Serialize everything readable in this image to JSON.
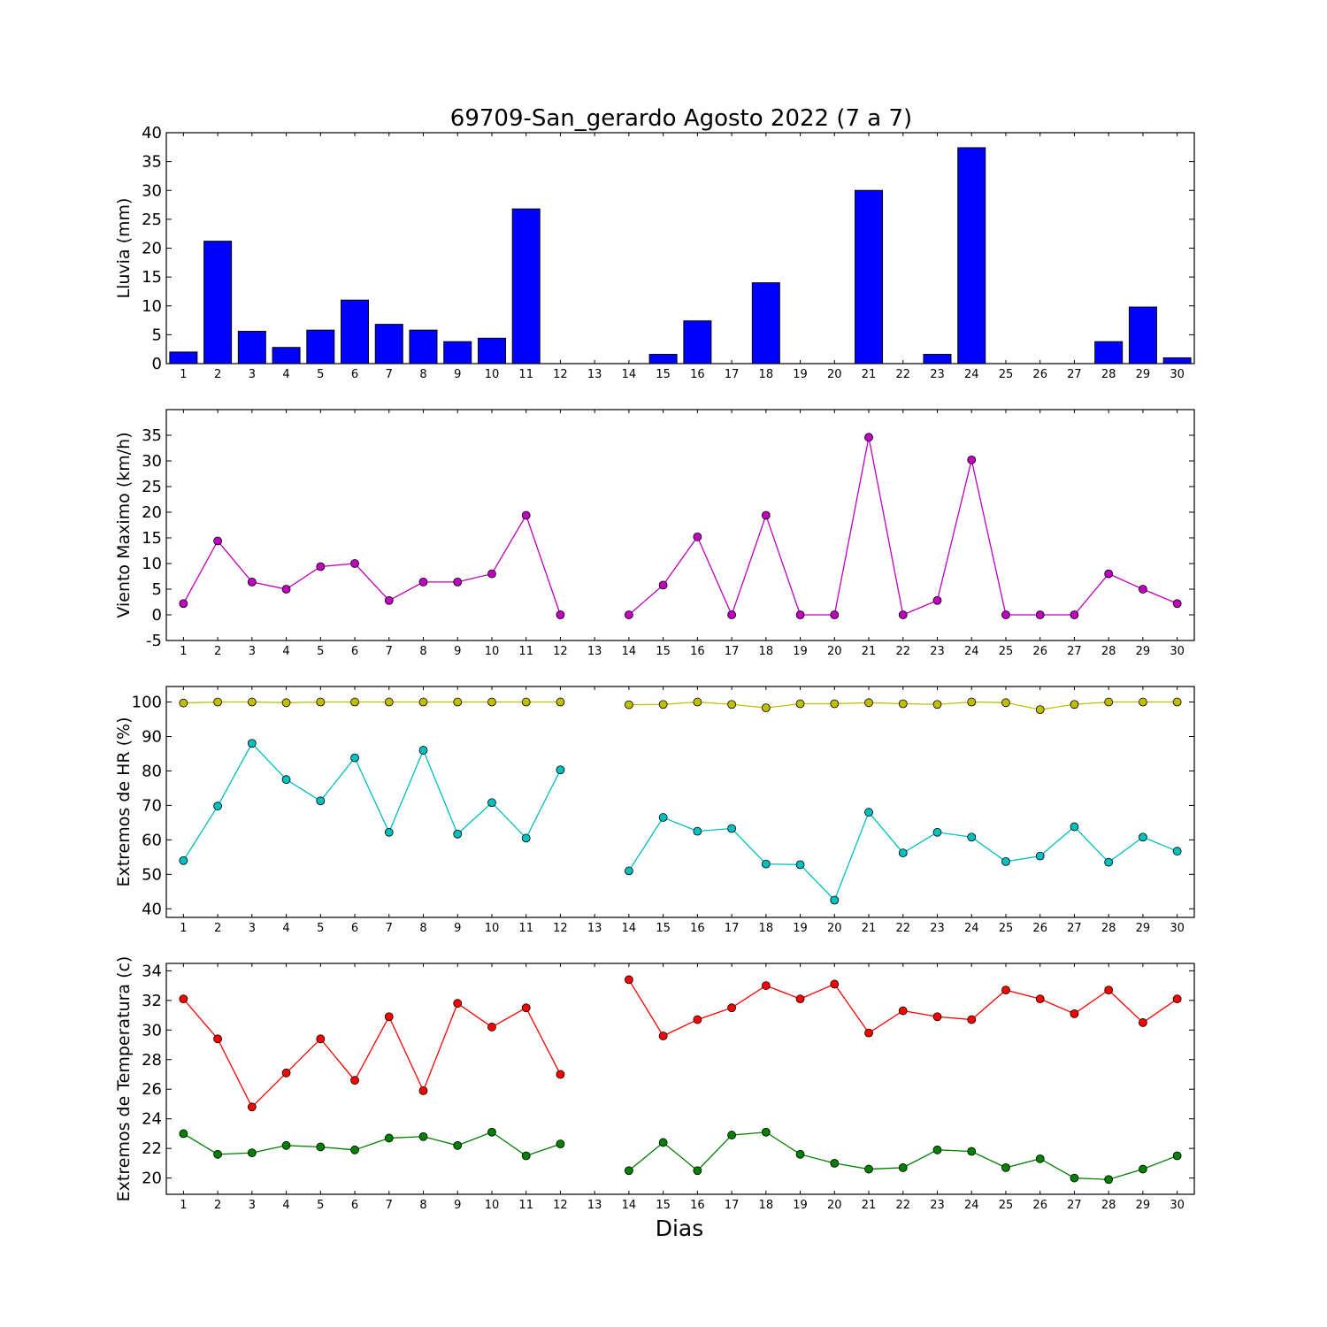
{
  "figure": {
    "title": "69709-San_gerardo Agosto 2022  (7 a 7)",
    "xlabel": "Dias"
  },
  "chart_data": [
    {
      "type": "bar",
      "ylabel": "Lluvia (mm)",
      "ylim": [
        0,
        40
      ],
      "yticks": [
        0,
        5,
        10,
        15,
        20,
        25,
        30,
        35,
        40
      ],
      "categories": [
        "1",
        "2",
        "3",
        "4",
        "5",
        "6",
        "7",
        "8",
        "9",
        "10",
        "11",
        "12",
        "13",
        "14",
        "15",
        "16",
        "17",
        "18",
        "19",
        "20",
        "21",
        "22",
        "23",
        "24",
        "25",
        "26",
        "27",
        "28",
        "29",
        "30"
      ],
      "series": [
        {
          "values": [
            2.0,
            21.2,
            5.6,
            2.8,
            5.8,
            11.0,
            6.8,
            5.8,
            3.8,
            4.4,
            26.8,
            0,
            0,
            0,
            1.6,
            7.4,
            0,
            14.0,
            0,
            0,
            30.0,
            0,
            1.6,
            37.4,
            0,
            0,
            0,
            3.8,
            9.8,
            1.0
          ],
          "color": "#0000ff"
        }
      ]
    },
    {
      "type": "line",
      "ylabel": "Viento Maximo (km/h)",
      "ylim": [
        -5,
        40
      ],
      "yticks": [
        -5,
        0,
        5,
        10,
        15,
        20,
        25,
        30,
        35
      ],
      "categories": [
        "1",
        "2",
        "3",
        "4",
        "5",
        "6",
        "7",
        "8",
        "9",
        "10",
        "11",
        "12",
        "13",
        "14",
        "15",
        "16",
        "17",
        "18",
        "19",
        "20",
        "21",
        "22",
        "23",
        "24",
        "25",
        "26",
        "27",
        "28",
        "29",
        "30"
      ],
      "series": [
        {
          "values": [
            2.2,
            14.4,
            6.4,
            5.0,
            9.4,
            10.0,
            2.8,
            6.4,
            6.4,
            8.0,
            19.4,
            0.0,
            null,
            0.0,
            5.8,
            15.2,
            0.0,
            19.4,
            0.0,
            0.0,
            34.6,
            0.0,
            2.8,
            30.2,
            0.0,
            0.0,
            0.0,
            8.0,
            5.0,
            2.2
          ],
          "color": "#bf00bf"
        }
      ]
    },
    {
      "type": "line",
      "ylabel": "Extremos de HR (%)",
      "ylim": [
        37.5,
        104.5
      ],
      "yticks": [
        40,
        50,
        60,
        70,
        80,
        90,
        100
      ],
      "categories": [
        "1",
        "2",
        "3",
        "4",
        "5",
        "6",
        "7",
        "8",
        "9",
        "10",
        "11",
        "12",
        "13",
        "14",
        "15",
        "16",
        "17",
        "18",
        "19",
        "20",
        "21",
        "22",
        "23",
        "24",
        "25",
        "26",
        "27",
        "28",
        "29",
        "30"
      ],
      "series": [
        {
          "values": [
            99.7,
            100,
            100,
            99.8,
            100,
            100,
            100,
            100,
            100,
            100,
            100,
            100,
            null,
            99.2,
            99.3,
            100,
            99.3,
            98.3,
            99.5,
            99.5,
            99.8,
            99.5,
            99.3,
            100,
            99.8,
            97.8,
            99.3,
            100,
            100,
            100
          ],
          "color": "#bfbf00"
        },
        {
          "values": [
            54.0,
            69.8,
            88.0,
            77.5,
            71.3,
            83.8,
            62.2,
            86.0,
            61.7,
            70.8,
            60.5,
            80.3,
            null,
            51.0,
            66.5,
            62.5,
            63.3,
            53.0,
            52.8,
            42.5,
            68.0,
            56.2,
            62.2,
            60.8,
            53.7,
            55.3,
            63.8,
            53.5,
            60.8,
            56.7
          ],
          "color": "#00bfbf"
        }
      ]
    },
    {
      "type": "line",
      "ylabel": "Extremos de Temperatura (c)",
      "ylim": [
        18.9,
        34.5
      ],
      "yticks": [
        20,
        22,
        24,
        26,
        28,
        30,
        32,
        34
      ],
      "categories": [
        "1",
        "2",
        "3",
        "4",
        "5",
        "6",
        "7",
        "8",
        "9",
        "10",
        "11",
        "12",
        "13",
        "14",
        "15",
        "16",
        "17",
        "18",
        "19",
        "20",
        "21",
        "22",
        "23",
        "24",
        "25",
        "26",
        "27",
        "28",
        "29",
        "30"
      ],
      "series": [
        {
          "values": [
            32.1,
            29.4,
            24.8,
            27.1,
            29.4,
            26.6,
            30.9,
            25.9,
            31.8,
            30.2,
            31.5,
            27.0,
            null,
            33.4,
            29.6,
            30.7,
            31.5,
            33.0,
            32.1,
            33.1,
            29.8,
            31.3,
            30.9,
            30.7,
            32.7,
            32.1,
            31.1,
            32.7,
            30.5,
            32.1
          ],
          "color": "#ff0000"
        },
        {
          "values": [
            23.0,
            21.6,
            21.7,
            22.2,
            22.1,
            21.9,
            22.7,
            22.8,
            22.2,
            23.1,
            21.5,
            22.3,
            null,
            20.5,
            22.4,
            20.5,
            22.9,
            23.1,
            21.6,
            21.0,
            20.6,
            20.7,
            21.9,
            21.8,
            20.7,
            21.3,
            20.0,
            19.9,
            20.6,
            21.5
          ],
          "color": "#008000"
        }
      ]
    }
  ]
}
